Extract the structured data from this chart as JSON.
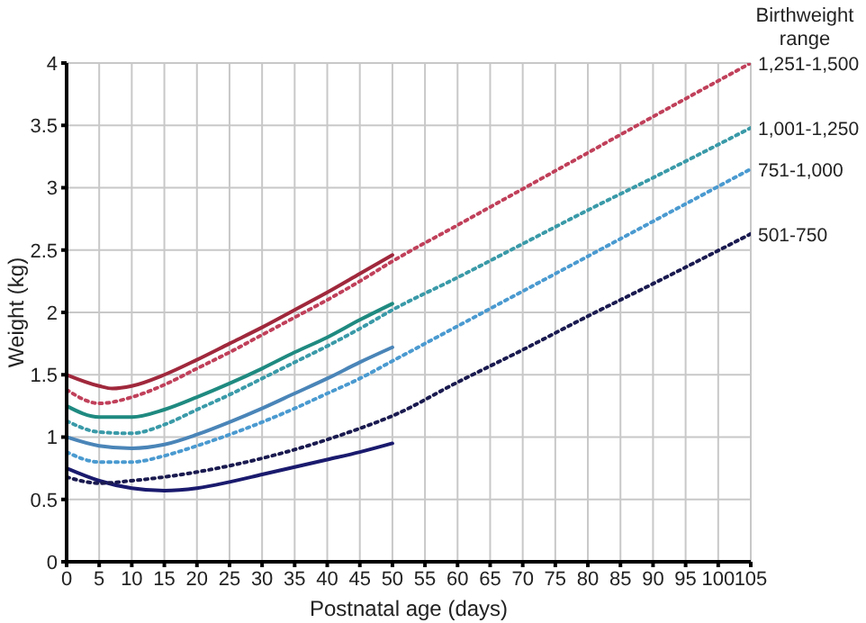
{
  "chart_data": {
    "type": "line",
    "xlabel": "Postnatal age (days)",
    "ylabel": "Weight (kg)",
    "legend_title": "Birthweight range",
    "xlim": [
      0,
      105
    ],
    "ylim": [
      0,
      4
    ],
    "xticks": [
      0,
      5,
      10,
      15,
      20,
      25,
      30,
      35,
      40,
      45,
      50,
      55,
      60,
      65,
      70,
      75,
      80,
      85,
      90,
      95,
      100,
      105
    ],
    "yticks": [
      0,
      0.5,
      1,
      1.5,
      2,
      2.5,
      3,
      3.5,
      4
    ],
    "grid": true,
    "series": [
      {
        "color": "#a0283c",
        "line_style": "solid",
        "x": [
          0,
          5,
          7,
          10,
          15,
          20,
          25,
          30,
          35,
          40,
          45,
          50
        ],
        "values": [
          1.5,
          1.41,
          1.39,
          1.41,
          1.5,
          1.62,
          1.75,
          1.88,
          2.02,
          2.16,
          2.31,
          2.46
        ]
      },
      {
        "color": "#1f8a80",
        "line_style": "solid",
        "x": [
          0,
          5,
          10,
          15,
          20,
          25,
          30,
          35,
          40,
          45,
          50
        ],
        "values": [
          1.25,
          1.16,
          1.16,
          1.22,
          1.32,
          1.43,
          1.55,
          1.68,
          1.8,
          1.94,
          2.07
        ]
      },
      {
        "color": "#4a85b8",
        "line_style": "solid",
        "x": [
          0,
          5,
          10,
          15,
          20,
          25,
          30,
          35,
          40,
          45,
          50
        ],
        "values": [
          1.0,
          0.93,
          0.91,
          0.94,
          1.02,
          1.12,
          1.23,
          1.35,
          1.47,
          1.6,
          1.72
        ]
      },
      {
        "color": "#1a1a6e",
        "line_style": "solid",
        "x": [
          0,
          5,
          10,
          15,
          20,
          25,
          30,
          35,
          40,
          45,
          50
        ],
        "values": [
          0.75,
          0.65,
          0.59,
          0.57,
          0.59,
          0.64,
          0.7,
          0.76,
          0.82,
          0.88,
          0.95
        ]
      },
      {
        "name": "1,251-1,500",
        "color": "#c0405a",
        "line_style": "dotted",
        "x": [
          0,
          5,
          10,
          15,
          20,
          25,
          30,
          35,
          40,
          45,
          50,
          60,
          70,
          80,
          90,
          105
        ],
        "values": [
          1.38,
          1.27,
          1.32,
          1.42,
          1.55,
          1.68,
          1.82,
          1.96,
          2.1,
          2.25,
          2.41,
          2.7,
          2.99,
          3.28,
          3.57,
          4.0
        ]
      },
      {
        "name": "1,001-1,250",
        "color": "#3a9aa8",
        "line_style": "dotted",
        "x": [
          0,
          5,
          10,
          15,
          20,
          25,
          30,
          35,
          40,
          45,
          50,
          60,
          70,
          80,
          90,
          105
        ],
        "values": [
          1.13,
          1.04,
          1.03,
          1.1,
          1.22,
          1.34,
          1.47,
          1.6,
          1.73,
          1.87,
          2.02,
          2.28,
          2.55,
          2.82,
          3.08,
          3.48
        ]
      },
      {
        "name": "751-1,000",
        "color": "#4a9ad0",
        "line_style": "dotted",
        "x": [
          0,
          5,
          10,
          15,
          20,
          25,
          30,
          35,
          40,
          45,
          50,
          60,
          70,
          80,
          90,
          105
        ],
        "values": [
          0.88,
          0.8,
          0.8,
          0.85,
          0.93,
          1.02,
          1.12,
          1.23,
          1.35,
          1.47,
          1.61,
          1.89,
          2.17,
          2.45,
          2.73,
          3.15
        ]
      },
      {
        "name": "501-750",
        "color": "#1a1a50",
        "line_style": "dotted",
        "x": [
          0,
          5,
          10,
          15,
          20,
          25,
          30,
          35,
          40,
          45,
          50,
          60,
          70,
          80,
          90,
          105
        ],
        "values": [
          0.68,
          0.63,
          0.65,
          0.68,
          0.72,
          0.77,
          0.83,
          0.9,
          0.98,
          1.07,
          1.17,
          1.44,
          1.7,
          1.97,
          2.23,
          2.63
        ]
      }
    ]
  }
}
